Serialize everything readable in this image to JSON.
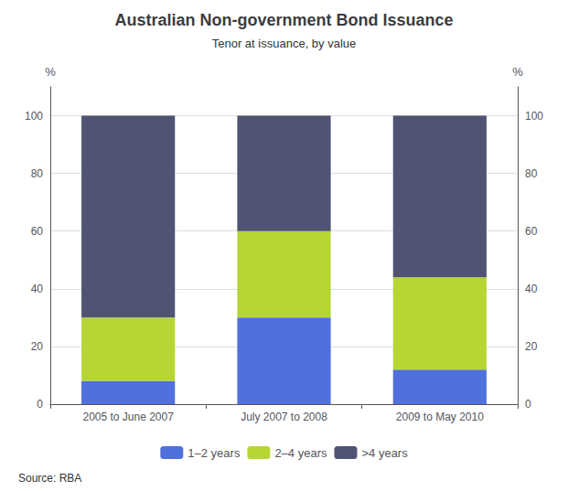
{
  "chart_data": {
    "type": "bar",
    "stacked": true,
    "title": "Australian Non-government Bond Issuance",
    "subtitle": "Tenor at issuance, by value",
    "categories": [
      "2005 to June 2007",
      "July 2007 to 2008",
      "2009 to May 2010"
    ],
    "series": [
      {
        "name": "1–2 years",
        "values": [
          8,
          30,
          12
        ]
      },
      {
        "name": "2–4 years",
        "values": [
          22,
          30,
          32
        ]
      },
      {
        "name": ">4 years",
        "values": [
          70,
          40,
          56
        ]
      }
    ],
    "ylabel": "%",
    "y2label": "%",
    "ylim": [
      0,
      110
    ],
    "yticks": [
      0,
      20,
      40,
      60,
      80,
      100
    ],
    "y2lim": [
      0,
      110
    ],
    "y2ticks": [
      0,
      20,
      40,
      60,
      80,
      100
    ],
    "grid": true,
    "legend": "bottom",
    "source": "Source: RBA"
  }
}
